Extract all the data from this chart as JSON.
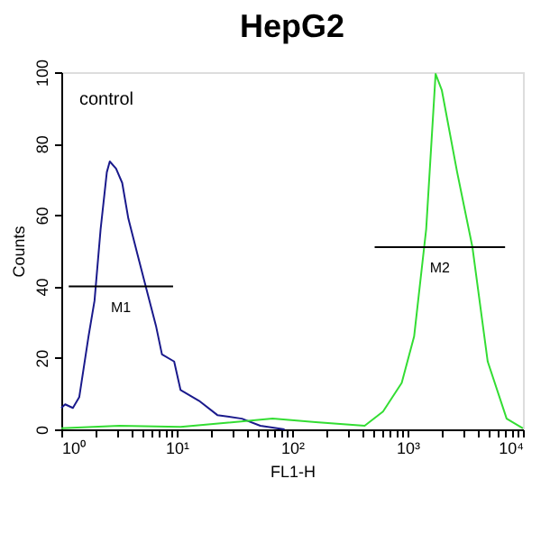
{
  "chart_data": {
    "type": "line",
    "title": "HepG2",
    "xlabel": "FL1-H",
    "ylabel": "Counts",
    "log": "x",
    "grid": false,
    "xlim": [
      1,
      10000
    ],
    "ylim": [
      0,
      100
    ],
    "xticks": [
      {
        "value": 1,
        "label": "10⁰"
      },
      {
        "value": 2,
        "label": null
      },
      {
        "value": 3,
        "label": null
      },
      {
        "value": 4,
        "label": null
      },
      {
        "value": 5,
        "label": null
      },
      {
        "value": 6,
        "label": null
      },
      {
        "value": 7,
        "label": null
      },
      {
        "value": 8,
        "label": null
      },
      {
        "value": 9,
        "label": null
      },
      {
        "value": 10,
        "label": "10¹"
      },
      {
        "value": 20,
        "label": null
      },
      {
        "value": 30,
        "label": null
      },
      {
        "value": 40,
        "label": null
      },
      {
        "value": 50,
        "label": null
      },
      {
        "value": 60,
        "label": null
      },
      {
        "value": 70,
        "label": null
      },
      {
        "value": 80,
        "label": null
      },
      {
        "value": 90,
        "label": null
      },
      {
        "value": 100,
        "label": "10²"
      },
      {
        "value": 200,
        "label": null
      },
      {
        "value": 300,
        "label": null
      },
      {
        "value": 400,
        "label": null
      },
      {
        "value": 500,
        "label": null
      },
      {
        "value": 600,
        "label": null
      },
      {
        "value": 700,
        "label": null
      },
      {
        "value": 800,
        "label": null
      },
      {
        "value": 900,
        "label": null
      },
      {
        "value": 1000,
        "label": "10³"
      },
      {
        "value": 2000,
        "label": null
      },
      {
        "value": 3000,
        "label": null
      },
      {
        "value": 4000,
        "label": null
      },
      {
        "value": 5000,
        "label": null
      },
      {
        "value": 6000,
        "label": null
      },
      {
        "value": 7000,
        "label": null
      },
      {
        "value": 8000,
        "label": null
      },
      {
        "value": 9000,
        "label": null
      },
      {
        "value": 10000,
        "label": "10⁴"
      }
    ],
    "yticks": [
      0,
      20,
      40,
      60,
      80,
      100
    ],
    "annotations": [
      "control"
    ],
    "series": [
      {
        "color": "#1a1a8c",
        "x": [
          1,
          1.08,
          1.26,
          1.43,
          1.72,
          1.94,
          2.19,
          2.48,
          2.63,
          2.98,
          3.37,
          3.81,
          4.57,
          5.49,
          6.61,
          7.45,
          9.5,
          10.8,
          15.6,
          22.5,
          36.7,
          53,
          86
        ],
        "values": [
          6,
          7,
          6,
          9,
          26,
          36,
          56,
          72,
          75,
          73,
          69,
          59,
          49,
          39,
          29,
          21,
          19,
          11,
          8,
          4,
          3,
          1,
          0
        ]
      },
      {
        "color": "#33dd33",
        "x": [
          1,
          3.2,
          10.8,
          67.7,
          160,
          425,
          613,
          890,
          1140,
          1450,
          1750,
          1980,
          2690,
          3650,
          4950,
          7220,
          10000
        ],
        "values": [
          0.3,
          1,
          0.7,
          3,
          2,
          1,
          5,
          13,
          26,
          56,
          99.5,
          95,
          72,
          51,
          19,
          3,
          0.3
        ]
      },
      {
        "name": "M1",
        "color": "#000000",
        "x": [
          1.16,
          9.3
        ],
        "values": [
          40,
          40
        ]
      },
      {
        "name": "M2",
        "color": "#000000",
        "x": [
          519,
          7000
        ],
        "values": [
          51,
          51
        ]
      }
    ]
  }
}
